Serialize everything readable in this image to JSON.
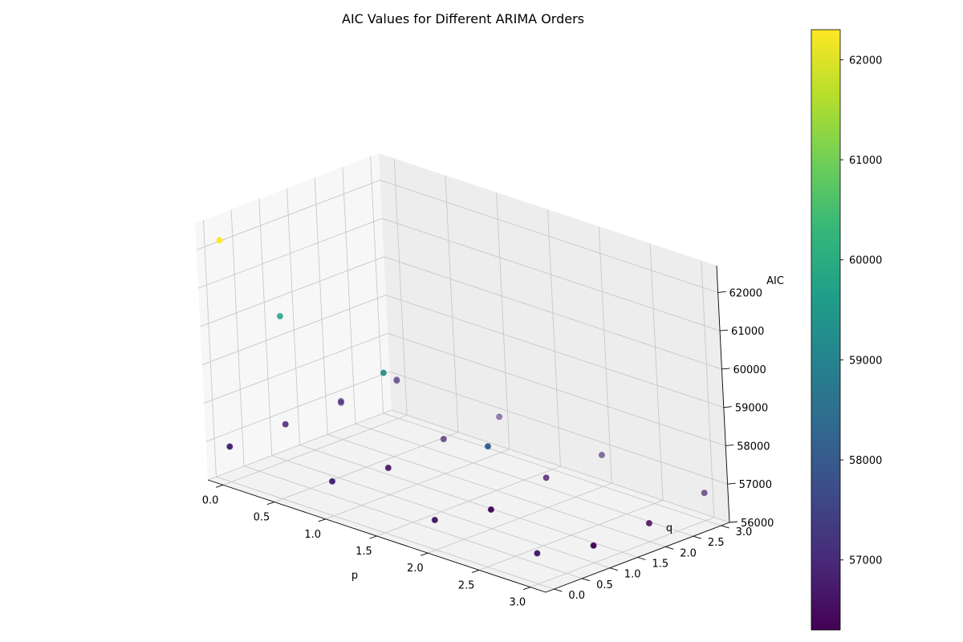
{
  "chart_data": {
    "type": "scatter",
    "title": "AIC Values for Different ARIMA Orders",
    "xlabel": "p",
    "ylabel": "q",
    "zlabel": "AIC",
    "xlim": [
      -0.15,
      3.15
    ],
    "ylim": [
      -0.15,
      3.15
    ],
    "zlim": [
      56000,
      62700
    ],
    "xticks": [
      "0.0",
      "0.5",
      "1.0",
      "1.5",
      "2.0",
      "2.5",
      "3.0"
    ],
    "yticks": [
      "0.0",
      "0.5",
      "1.0",
      "1.5",
      "2.0",
      "2.5",
      "3.0"
    ],
    "zticks": [
      "56000",
      "57000",
      "58000",
      "59000",
      "60000",
      "61000",
      "62000"
    ],
    "grid": true,
    "colormap": "viridis",
    "colorbar": {
      "range": [
        56300,
        62300
      ],
      "ticks": [
        "57000",
        "58000",
        "59000",
        "60000",
        "61000",
        "62000"
      ],
      "colors": [
        "#440154",
        "#482878",
        "#3e4989",
        "#31688e",
        "#26828e",
        "#1f9e89",
        "#35b779",
        "#6ece58",
        "#b5de2b",
        "#fde725"
      ]
    },
    "points": [
      {
        "p": 0,
        "q": 0,
        "aic": 56920
      },
      {
        "p": 0,
        "q": 1,
        "aic": 56950
      },
      {
        "p": 0,
        "q": 2,
        "aic": 56960
      },
      {
        "p": 0,
        "q": 3,
        "aic": 56980
      },
      {
        "p": 1,
        "q": 0,
        "aic": 56900
      },
      {
        "p": 1,
        "q": 1,
        "aic": 56700
      },
      {
        "p": 1,
        "q": 2,
        "aic": 56900
      },
      {
        "p": 1,
        "q": 3,
        "aic": 56930
      },
      {
        "p": 2,
        "q": 0,
        "aic": 56780
      },
      {
        "p": 2,
        "q": 1,
        "aic": 56500
      },
      {
        "p": 2,
        "q": 2,
        "aic": 56780
      },
      {
        "p": 2,
        "q": 3,
        "aic": 56820
      },
      {
        "p": 3,
        "q": 0,
        "aic": 56800
      },
      {
        "p": 3,
        "q": 1,
        "aic": 56450
      },
      {
        "p": 3,
        "q": 2,
        "aic": 56480
      },
      {
        "p": 3,
        "q": 3,
        "aic": 56720
      },
      {
        "p": 0,
        "q": 0,
        "aic": 62300
      },
      {
        "p": 0,
        "q": 1,
        "aic": 59770
      },
      {
        "p": 0,
        "q": 2,
        "aic": 57000
      },
      {
        "p": 0,
        "q": 3,
        "aic": 57010
      },
      {
        "p": 1,
        "q": 1,
        "aic": 59180
      },
      {
        "p": 2,
        "q": 1,
        "aic": 58150
      }
    ]
  }
}
